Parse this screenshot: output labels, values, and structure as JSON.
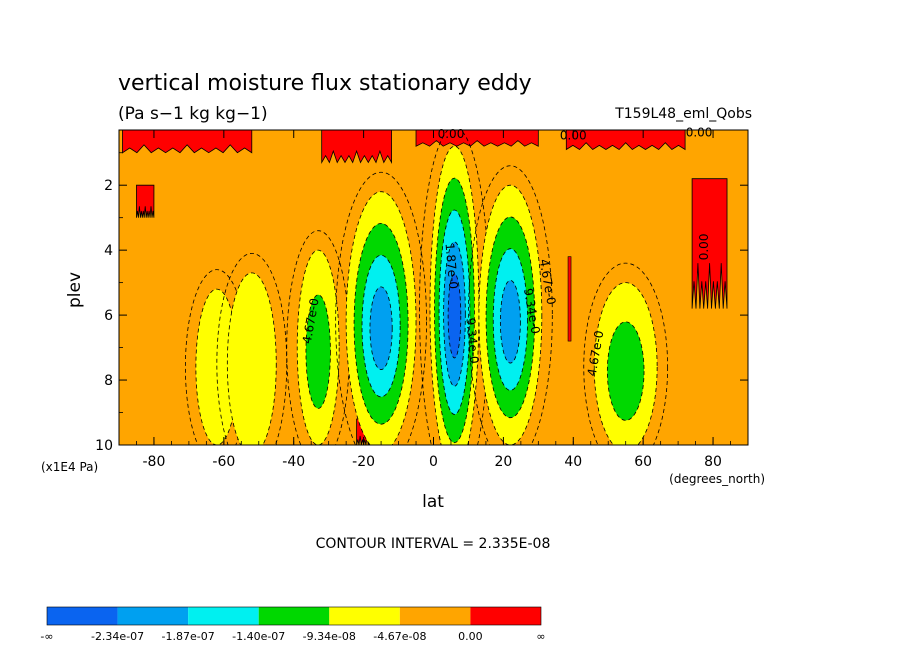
{
  "chart_data": {
    "type": "heatmap",
    "title": "vertical moisture flux stationary eddy",
    "units": "(Pa s−1 kg kg−1)",
    "run_label": "T159L48_eml_Qobs",
    "xlabel": "lat",
    "x_unit": "(degrees_north)",
    "ylabel": "plev",
    "y_unit": "(x1E4 Pa)",
    "contour_interval_text": "CONTOUR INTERVAL = 2.335E-08",
    "xlim": [
      -90,
      90
    ],
    "ylim": [
      10,
      0.3
    ],
    "y_inverted": true,
    "x_ticks": [
      {
        "v": -80,
        "label": "-80"
      },
      {
        "v": -60,
        "label": "-60"
      },
      {
        "v": -40,
        "label": "-40"
      },
      {
        "v": -20,
        "label": "-20"
      },
      {
        "v": 0,
        "label": "0"
      },
      {
        "v": 20,
        "label": "20"
      },
      {
        "v": 40,
        "label": "40"
      },
      {
        "v": 60,
        "label": "60"
      },
      {
        "v": 80,
        "label": "80"
      }
    ],
    "y_ticks": [
      {
        "v": 2,
        "label": "2"
      },
      {
        "v": 4,
        "label": "4"
      },
      {
        "v": 6,
        "label": "6"
      },
      {
        "v": 8,
        "label": "8"
      },
      {
        "v": 10,
        "label": "10"
      }
    ],
    "colorbar": {
      "colors": [
        "#0a64f0",
        "#00a0f0",
        "#00f0f0",
        "#00d800",
        "#ffff00",
        "#ffa500",
        "#ff0000"
      ],
      "labels": [
        "-∞",
        "-2.34e-07",
        "-1.87e-07",
        "-1.40e-07",
        "-9.34e-08",
        "-4.67e-08",
        "0.00",
        "∞"
      ]
    },
    "contour_labels": [
      {
        "x": 40,
        "y": 0.6,
        "text": "0.00",
        "angle": 0
      },
      {
        "x": 5,
        "y": 0.55,
        "text": "0.00",
        "angle": 0
      },
      {
        "x": 76,
        "y": 0.5,
        "text": "0.00",
        "angle": 0
      },
      {
        "x": 78.5,
        "y": 3.9,
        "text": "0.00",
        "angle": -90
      },
      {
        "x": -34,
        "y": 6.2,
        "text": "4.67e-0",
        "angle": -80
      },
      {
        "x": 31.5,
        "y": 5.0,
        "text": "4.67e-0",
        "angle": 80
      },
      {
        "x": 27,
        "y": 5.9,
        "text": "9.34e-0",
        "angle": 80
      },
      {
        "x": 47.5,
        "y": 7.2,
        "text": "4.67e-0",
        "angle": -80
      },
      {
        "x": 4,
        "y": 4.5,
        "text": "1.87e-0",
        "angle": 85
      },
      {
        "x": 10,
        "y": 6.8,
        "text": "9.34e-0",
        "angle": 85
      }
    ],
    "regions": {
      "background_level": 5,
      "red_surface": [
        {
          "x": [
            -89,
            -52
          ],
          "y": [
            0.3,
            1.0
          ]
        },
        {
          "x": [
            -32,
            -12
          ],
          "y": [
            0.3,
            1.3
          ]
        },
        {
          "x": [
            -5,
            30
          ],
          "y": [
            0.3,
            0.8
          ]
        },
        {
          "x": [
            38,
            72
          ],
          "y": [
            0.3,
            0.9
          ]
        },
        {
          "x": [
            -22,
            -16
          ],
          "y": [
            9.2,
            10
          ]
        },
        {
          "x": [
            74,
            84
          ],
          "y": [
            1.8,
            5.8
          ]
        },
        {
          "x": [
            -85,
            -80
          ],
          "y": [
            2.0,
            3.0
          ]
        }
      ],
      "dipoles": [
        {
          "cx": -62,
          "cy": 7.6,
          "rx": 6,
          "ry": 2.4,
          "peak": 4
        },
        {
          "cx": -52,
          "cy": 7.5,
          "rx": 7,
          "ry": 2.8,
          "peak": 4
        },
        {
          "cx": -33,
          "cy": 7.0,
          "rx": 6,
          "ry": 3.0,
          "peak": 3
        },
        {
          "cx": -15,
          "cy": 6.2,
          "rx": 10,
          "ry": 4.0,
          "peak": 1
        },
        {
          "cx": 6,
          "cy": 5.8,
          "rx": 7,
          "ry": 5.0,
          "peak": 0
        },
        {
          "cx": 22,
          "cy": 6.0,
          "rx": 9,
          "ry": 4.0,
          "peak": 1
        },
        {
          "cx": 55,
          "cy": 7.6,
          "rx": 9,
          "ry": 2.6,
          "peak": 3
        }
      ]
    }
  }
}
